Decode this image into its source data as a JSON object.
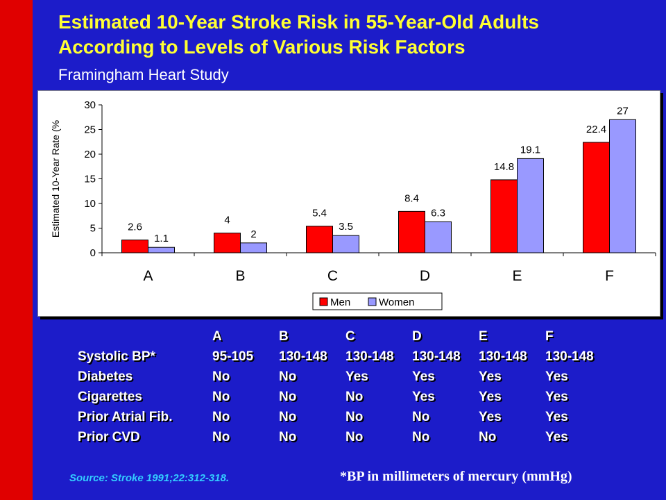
{
  "slide": {
    "title_line1": "Estimated 10-Year Stroke Risk in 55-Year-Old Adults",
    "title_line2": "According to Levels of Various Risk Factors",
    "subtitle": "Framingham Heart Study",
    "source": "Source: Stroke 1991;22:312-318.",
    "footnote": "*BP in millimeters of mercury (mmHg)"
  },
  "colors": {
    "background": "#1c1cc9",
    "accent_bar": "#e00000",
    "title": "#ffff33",
    "men": "#ff0000",
    "women": "#9999ff",
    "source": "#33ccff"
  },
  "chart_data": {
    "type": "bar",
    "categories": [
      "A",
      "B",
      "C",
      "D",
      "E",
      "F"
    ],
    "series": [
      {
        "name": "Men",
        "values": [
          2.6,
          4,
          5.4,
          8.4,
          14.8,
          22.4
        ],
        "color": "#ff0000"
      },
      {
        "name": "Women",
        "values": [
          1.1,
          2,
          3.5,
          6.3,
          19.1,
          27
        ],
        "color": "#9999ff"
      }
    ],
    "ylabel": "Estimated 10-Year Rate (%",
    "ylim": [
      0,
      30
    ],
    "yticks": [
      "0",
      "5",
      "10",
      "15",
      "20",
      "25",
      "30"
    ],
    "legend_position": "bottom-right",
    "grid": false
  },
  "table": {
    "columns": [
      "",
      "A",
      "B",
      "C",
      "D",
      "E",
      "F"
    ],
    "rows": [
      {
        "label": "Systolic BP*",
        "values": [
          "95-105",
          "130-148",
          "130-148",
          "130-148",
          "130-148",
          "130-148"
        ]
      },
      {
        "label": "Diabetes",
        "values": [
          "No",
          "No",
          "Yes",
          "Yes",
          "Yes",
          "Yes"
        ]
      },
      {
        "label": "Cigarettes",
        "values": [
          "No",
          "No",
          "No",
          "Yes",
          "Yes",
          "Yes"
        ]
      },
      {
        "label": "Prior Atrial Fib.",
        "values": [
          "No",
          "No",
          "No",
          "No",
          "Yes",
          "Yes"
        ]
      },
      {
        "label": "Prior CVD",
        "values": [
          "No",
          "No",
          "No",
          "No",
          "No",
          "Yes"
        ]
      }
    ]
  }
}
